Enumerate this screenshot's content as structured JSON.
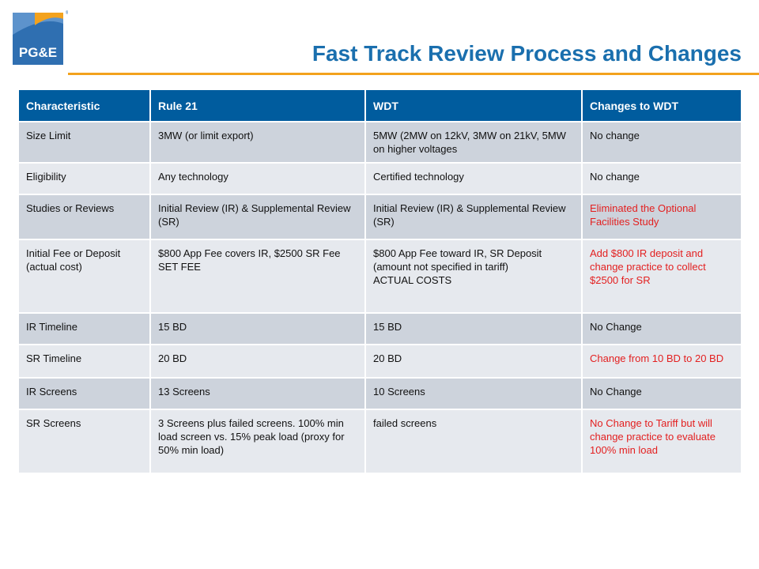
{
  "header": {
    "logo_text": "PG&E",
    "title": "Fast Track Review Process and Changes"
  },
  "colors": {
    "title_blue": "#1a6fae",
    "header_bg": "#005c9e",
    "accent_orange": "#f3a21d",
    "highlight_red": "#e32020"
  },
  "table": {
    "headers": [
      "Characteristic",
      "Rule 21",
      "WDT",
      "Changes to WDT"
    ],
    "rows": [
      {
        "characteristic": "Size Limit",
        "rule21": [
          "3MW (or limit export)"
        ],
        "wdt": [
          "5MW (2MW on 12kV, 3MW on 21kV, 5MW on higher voltages"
        ],
        "changes": "No change",
        "changes_highlight": false
      },
      {
        "characteristic": "Eligibility",
        "rule21": [
          "Any technology"
        ],
        "wdt": [
          "Certified technology"
        ],
        "changes": "No change",
        "changes_highlight": false
      },
      {
        "characteristic": "Studies or Reviews",
        "rule21": [
          "Initial Review (IR) & Supplemental Review (SR)"
        ],
        "wdt": [
          "Initial Review (IR) & Supplemental Review (SR)"
        ],
        "changes": "Eliminated the Optional Facilities Study",
        "changes_highlight": true
      },
      {
        "characteristic": "Initial Fee or Deposit (actual cost)",
        "rule21": [
          "$800 App Fee covers IR, $2500 SR Fee",
          "SET FEE"
        ],
        "wdt": [
          "$800 App Fee toward IR, SR Deposit (amount not specified in tariff)",
          "ACTUAL COSTS"
        ],
        "changes": "Add $800 IR deposit and change practice to collect $2500 for SR",
        "changes_highlight": true
      },
      {
        "characteristic": "IR Timeline",
        "rule21": [
          "15 BD"
        ],
        "wdt": [
          "15 BD"
        ],
        "changes": "No Change",
        "changes_highlight": false
      },
      {
        "characteristic": "SR Timeline",
        "rule21": [
          "20 BD"
        ],
        "wdt": [
          "20 BD"
        ],
        "changes": "Change from 10 BD to 20 BD",
        "changes_highlight": true
      },
      {
        "characteristic": "IR Screens",
        "rule21": [
          "13 Screens"
        ],
        "wdt": [
          "10 Screens"
        ],
        "changes": "No Change",
        "changes_highlight": false
      },
      {
        "characteristic": "SR Screens",
        "rule21": [
          "3 Screens plus failed screens. 100% min load screen vs. 15% peak load (proxy for 50% min load)"
        ],
        "wdt": [
          "failed screens"
        ],
        "changes": "No Change to Tariff but will change practice to evaluate 100% min load",
        "changes_highlight": true
      }
    ]
  }
}
